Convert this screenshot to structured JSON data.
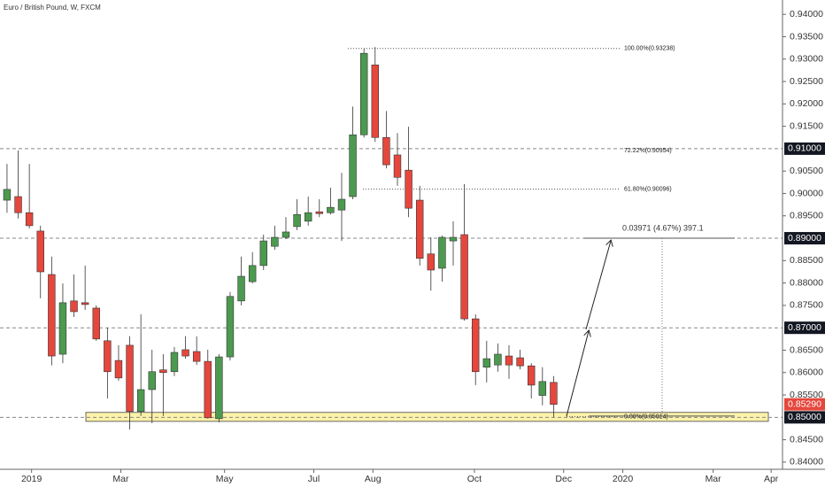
{
  "header": {
    "title": "Euro / British Pound, W, FXCM"
  },
  "chart_data": {
    "type": "candlestick",
    "up_color": "#4c9a4f",
    "down_color": "#e5473d",
    "candles": [
      {
        "open": 0.8985,
        "high": 0.9066,
        "low": 0.8957,
        "close": 0.9009
      },
      {
        "open": 0.8993,
        "high": 0.9096,
        "low": 0.8944,
        "close": 0.8957
      },
      {
        "open": 0.8957,
        "high": 0.9066,
        "low": 0.8922,
        "close": 0.8928
      },
      {
        "open": 0.8916,
        "high": 0.8928,
        "low": 0.8766,
        "close": 0.8825
      },
      {
        "open": 0.8819,
        "high": 0.8859,
        "low": 0.8616,
        "close": 0.8637
      },
      {
        "open": 0.8641,
        "high": 0.8799,
        "low": 0.8621,
        "close": 0.8756
      },
      {
        "open": 0.876,
        "high": 0.8819,
        "low": 0.8724,
        "close": 0.8736
      },
      {
        "open": 0.8756,
        "high": 0.8839,
        "low": 0.874,
        "close": 0.8752
      },
      {
        "open": 0.8744,
        "high": 0.875,
        "low": 0.8671,
        "close": 0.8675
      },
      {
        "open": 0.8671,
        "high": 0.87,
        "low": 0.8542,
        "close": 0.8602
      },
      {
        "open": 0.8627,
        "high": 0.8661,
        "low": 0.8582,
        "close": 0.8588
      },
      {
        "open": 0.8661,
        "high": 0.8681,
        "low": 0.8473,
        "close": 0.8513
      },
      {
        "open": 0.8513,
        "high": 0.873,
        "low": 0.8503,
        "close": 0.8562
      },
      {
        "open": 0.8562,
        "high": 0.8651,
        "low": 0.8487,
        "close": 0.8602
      },
      {
        "open": 0.8606,
        "high": 0.8641,
        "low": 0.8503,
        "close": 0.86
      },
      {
        "open": 0.8602,
        "high": 0.8657,
        "low": 0.8592,
        "close": 0.8645
      },
      {
        "open": 0.8651,
        "high": 0.8681,
        "low": 0.8631,
        "close": 0.8637
      },
      {
        "open": 0.8647,
        "high": 0.8681,
        "low": 0.8617,
        "close": 0.8625
      },
      {
        "open": 0.8625,
        "high": 0.8651,
        "low": 0.8497,
        "close": 0.8499
      },
      {
        "open": 0.8497,
        "high": 0.8641,
        "low": 0.8489,
        "close": 0.8635
      },
      {
        "open": 0.8635,
        "high": 0.878,
        "low": 0.8627,
        "close": 0.877
      },
      {
        "open": 0.876,
        "high": 0.8859,
        "low": 0.875,
        "close": 0.8815
      },
      {
        "open": 0.8803,
        "high": 0.8869,
        "low": 0.8799,
        "close": 0.8839
      },
      {
        "open": 0.8839,
        "high": 0.8908,
        "low": 0.8829,
        "close": 0.8894
      },
      {
        "open": 0.8882,
        "high": 0.8928,
        "low": 0.8874,
        "close": 0.8902
      },
      {
        "open": 0.8902,
        "high": 0.8947,
        "low": 0.8898,
        "close": 0.8914
      },
      {
        "open": 0.8926,
        "high": 0.8987,
        "low": 0.8918,
        "close": 0.8953
      },
      {
        "open": 0.8938,
        "high": 0.8993,
        "low": 0.8928,
        "close": 0.8957
      },
      {
        "open": 0.8959,
        "high": 0.8987,
        "low": 0.8947,
        "close": 0.8955
      },
      {
        "open": 0.8957,
        "high": 0.9013,
        "low": 0.8953,
        "close": 0.8969
      },
      {
        "open": 0.8963,
        "high": 0.9046,
        "low": 0.8894,
        "close": 0.8987
      },
      {
        "open": 0.8993,
        "high": 0.9194,
        "low": 0.8987,
        "close": 0.9131
      },
      {
        "open": 0.9131,
        "high": 0.9323,
        "low": 0.9125,
        "close": 0.9313
      },
      {
        "open": 0.9287,
        "high": 0.9327,
        "low": 0.9115,
        "close": 0.9125
      },
      {
        "open": 0.9125,
        "high": 0.9184,
        "low": 0.9056,
        "close": 0.9064
      },
      {
        "open": 0.9086,
        "high": 0.9135,
        "low": 0.9017,
        "close": 0.9036
      },
      {
        "open": 0.9052,
        "high": 0.9149,
        "low": 0.8947,
        "close": 0.8967
      },
      {
        "open": 0.8985,
        "high": 0.9017,
        "low": 0.8839,
        "close": 0.8855
      },
      {
        "open": 0.8865,
        "high": 0.8902,
        "low": 0.8783,
        "close": 0.8829
      },
      {
        "open": 0.8833,
        "high": 0.8906,
        "low": 0.8803,
        "close": 0.8902
      },
      {
        "open": 0.8894,
        "high": 0.8938,
        "low": 0.8839,
        "close": 0.8902
      },
      {
        "open": 0.8908,
        "high": 0.9021,
        "low": 0.8716,
        "close": 0.872
      },
      {
        "open": 0.872,
        "high": 0.873,
        "low": 0.8572,
        "close": 0.8602
      },
      {
        "open": 0.8612,
        "high": 0.8671,
        "low": 0.8578,
        "close": 0.8631
      },
      {
        "open": 0.8617,
        "high": 0.8665,
        "low": 0.8602,
        "close": 0.8641
      },
      {
        "open": 0.8637,
        "high": 0.8661,
        "low": 0.8586,
        "close": 0.8617
      },
      {
        "open": 0.8633,
        "high": 0.8651,
        "low": 0.8607,
        "close": 0.8615
      },
      {
        "open": 0.8615,
        "high": 0.8621,
        "low": 0.8542,
        "close": 0.8572
      },
      {
        "open": 0.8549,
        "high": 0.8612,
        "low": 0.8527,
        "close": 0.858
      },
      {
        "open": 0.8578,
        "high": 0.8592,
        "low": 0.8501,
        "close": 0.8529
      }
    ],
    "last_price_label": "0.85290",
    "ylim": [
      0.8384,
      0.9432
    ],
    "yticks": [
      {
        "value": 0.94,
        "label": "0.94000"
      },
      {
        "value": 0.935,
        "label": "0.93500"
      },
      {
        "value": 0.93,
        "label": "0.93000"
      },
      {
        "value": 0.925,
        "label": "0.92500"
      },
      {
        "value": 0.92,
        "label": "0.92000"
      },
      {
        "value": 0.915,
        "label": "0.91500"
      },
      {
        "value": 0.905,
        "label": "0.90500"
      },
      {
        "value": 0.9,
        "label": "0.90000"
      },
      {
        "value": 0.895,
        "label": "0.89500"
      },
      {
        "value": 0.885,
        "label": "0.88500"
      },
      {
        "value": 0.88,
        "label": "0.88000"
      },
      {
        "value": 0.875,
        "label": "0.87500"
      },
      {
        "value": 0.865,
        "label": "0.86500"
      },
      {
        "value": 0.86,
        "label": "0.86000"
      },
      {
        "value": 0.855,
        "label": "0.85500"
      },
      {
        "value": 0.845,
        "label": "0.84500"
      },
      {
        "value": 0.84,
        "label": "0.84000"
      }
    ],
    "levels": [
      {
        "value": 0.91,
        "label": "0.91000"
      },
      {
        "value": 0.89,
        "label": "0.89000"
      },
      {
        "value": 0.87,
        "label": "0.87000"
      },
      {
        "value": 0.85,
        "label": "0.85000"
      }
    ],
    "zone": [
      0.8491,
      0.8511
    ],
    "fib_levels": [
      {
        "value": 0.93238,
        "label": "100.00%(0.93238)"
      },
      {
        "value": 0.90954,
        "label": "72.22%(0.90954)"
      },
      {
        "value": 0.90096,
        "label": "61.80%(0.90096)"
      },
      {
        "value": 0.85014,
        "label": "0.00%(0.85014)"
      }
    ],
    "measure": {
      "label": "0.03971 (4.67%) 397.1",
      "from": 0.8503,
      "to": 0.89
    },
    "xlim": [
      -0.63,
      69.52
    ],
    "xticks": [
      {
        "value": 2.2,
        "label": "2019"
      },
      {
        "value": 10.2,
        "label": "Mar"
      },
      {
        "value": 19.5,
        "label": "May"
      },
      {
        "value": 27.5,
        "label": "Jul"
      },
      {
        "value": 32.8,
        "label": "Aug"
      },
      {
        "value": 41.9,
        "label": "Oct"
      },
      {
        "value": 49.9,
        "label": "Dec"
      },
      {
        "value": 55.2,
        "label": "2020"
      },
      {
        "value": 63.3,
        "label": "Mar"
      },
      {
        "value": 68.5,
        "label": "Apr"
      }
    ]
  }
}
